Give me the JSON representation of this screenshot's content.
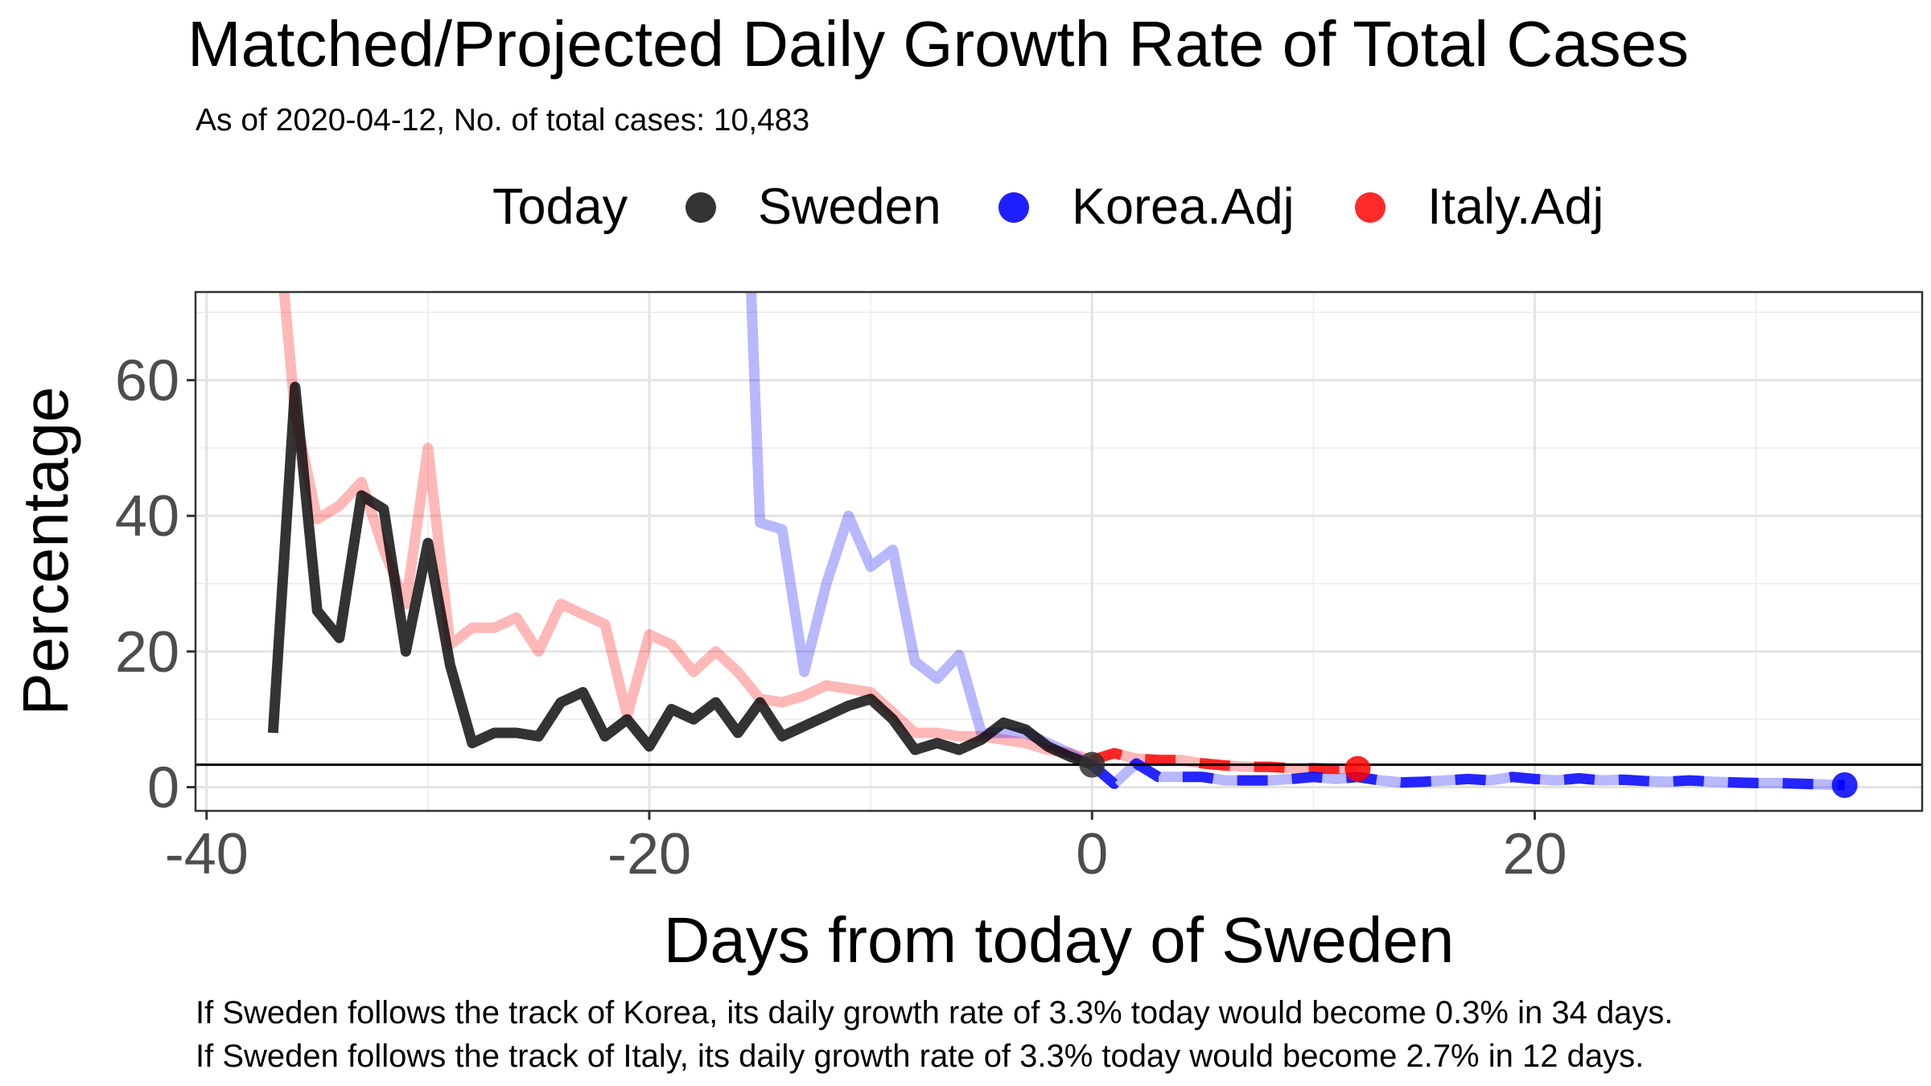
{
  "chart_data": {
    "type": "line",
    "title": "Matched/Projected Daily Growth Rate of Total Cases",
    "subtitle": "As of 2020-04-12, No. of total cases: 10,483",
    "xlabel": "Days from today of Sweden",
    "ylabel": "Percentage",
    "xlim": [
      -40.5,
      37.5
    ],
    "ylim": [
      -3.5,
      73
    ],
    "x_ticks": [
      -40,
      -20,
      0,
      20
    ],
    "x_tick_labels": [
      "-40",
      "-20",
      "0",
      "20"
    ],
    "y_ticks": [
      0,
      20,
      40,
      60
    ],
    "y_tick_labels": [
      "0",
      "20",
      "40",
      "60"
    ],
    "grid": true,
    "legend": {
      "position": "top",
      "title": "Today",
      "entries": [
        "Sweden",
        "Korea.Adj",
        "Italy.Adj"
      ]
    },
    "reference_line": {
      "y": 3.3
    },
    "series": [
      {
        "name": "Sweden",
        "color": "#000000",
        "style": "solid",
        "x": [
          -37,
          -36,
          -35,
          -34,
          -33,
          -32,
          -31,
          -30,
          -29,
          -28,
          -27,
          -26,
          -25,
          -24,
          -23,
          -22,
          -21,
          -20,
          -19,
          -18,
          -17,
          -16,
          -15,
          -14,
          -13,
          -12,
          -11,
          -10,
          -9,
          -8,
          -7,
          -6,
          -5,
          -4,
          -3,
          -2,
          -1,
          0
        ],
        "y": [
          8,
          59,
          26,
          22,
          43,
          41,
          20,
          36,
          18,
          6.5,
          8,
          8,
          7.5,
          12.5,
          14,
          7.5,
          10,
          6,
          11.5,
          10,
          12.5,
          8,
          12.5,
          7.5,
          9,
          10.5,
          12,
          13,
          10,
          5.5,
          6.5,
          5.5,
          7,
          9.5,
          8.5,
          6,
          4.5,
          3.3
        ]
      },
      {
        "name": "Italy.Adj",
        "color": "#ff0000",
        "style": "faded-history-dashed-projection",
        "x": [
          -36.5,
          -36,
          -35,
          -34,
          -33,
          -32,
          -31,
          -30,
          -29,
          -28,
          -27,
          -26,
          -25,
          -24,
          -23,
          -22,
          -21,
          -20,
          -19,
          -18,
          -17,
          -16,
          -15,
          -14,
          -13,
          -12,
          -11,
          -10,
          -9,
          -8,
          -7,
          -6,
          -5,
          -4,
          -3,
          -2,
          -1,
          0,
          1,
          2,
          3,
          4,
          5,
          6,
          7,
          8,
          9,
          10,
          11,
          12
        ],
        "y": [
          73,
          55,
          39.5,
          41.5,
          45,
          35,
          27,
          50,
          21,
          23.5,
          23.5,
          25,
          20,
          27,
          25.5,
          24,
          10.5,
          22.5,
          21,
          17,
          20,
          17,
          13,
          12.5,
          13.5,
          15,
          14.5,
          14,
          11,
          8,
          8,
          7.5,
          7.5,
          7,
          6.5,
          5.5,
          5,
          4,
          5,
          4.2,
          4,
          4,
          3.5,
          3.2,
          3,
          3,
          2.8,
          2.8,
          2.7,
          2.7
        ]
      },
      {
        "name": "Korea.Adj",
        "color": "#0000ff",
        "style": "faded-history-dashed-projection",
        "x": [
          -15.4,
          -15,
          -14,
          -13,
          -12,
          -11,
          -10,
          -9,
          -8,
          -7,
          -6,
          -5,
          -4,
          -3,
          -2,
          -1,
          0,
          1,
          2,
          3,
          4,
          5,
          6,
          7,
          8,
          9,
          10,
          11,
          12,
          13,
          14,
          15,
          16,
          17,
          18,
          19,
          20,
          21,
          22,
          23,
          24,
          25,
          26,
          27,
          28,
          29,
          30,
          31,
          32,
          33,
          34
        ],
        "y": [
          73,
          39,
          38,
          17,
          30,
          40,
          32.5,
          35,
          18.5,
          16,
          19.5,
          8,
          8,
          8,
          6.5,
          5,
          3.3,
          0.5,
          3.5,
          1.5,
          1.5,
          1.5,
          1,
          1,
          1,
          1.2,
          1.5,
          1.2,
          1.5,
          1,
          0.7,
          0.8,
          1,
          1.2,
          1,
          1.5,
          1.2,
          1,
          1.3,
          1,
          1.1,
          0.9,
          0.8,
          1,
          0.8,
          0.7,
          0.6,
          0.6,
          0.5,
          0.4,
          0.3
        ]
      }
    ],
    "today_markers": [
      {
        "series": "Sweden",
        "x": 0,
        "y": 3.3,
        "color": "#333333"
      },
      {
        "series": "Korea.Adj",
        "x": 34,
        "y": 0.3,
        "color": "#0000ff"
      },
      {
        "series": "Italy.Adj",
        "x": 12,
        "y": 2.7,
        "color": "#ff0000"
      }
    ],
    "notes": [
      "If Sweden follows the track of Korea, its daily growth rate of 3.3% today would become 0.3% in 34 days.",
      "If Sweden follows the track of Italy, its daily growth rate of 3.3% today would become 2.7% in 12 days."
    ]
  }
}
